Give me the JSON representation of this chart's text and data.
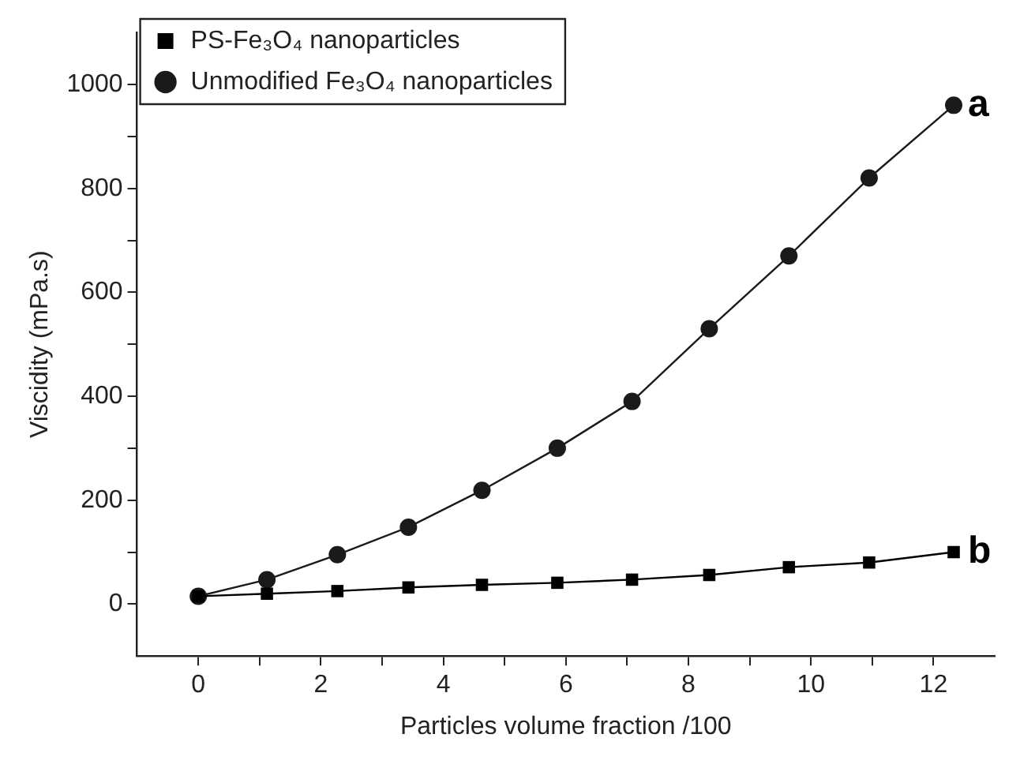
{
  "chart_data": {
    "type": "line",
    "xlabel": "Particles volume fraction /100",
    "ylabel": "Viscidity (mPa.s)",
    "x": [
      0,
      1.12,
      2.27,
      3.43,
      4.63,
      5.86,
      7.08,
      8.34,
      9.64,
      10.95,
      12.33
    ],
    "series": [
      {
        "name": "PS-Fe₃O₄ nanoparticles",
        "color": "#000000",
        "marker": "square",
        "values": [
          15,
          20,
          25,
          32,
          37,
          41,
          47,
          56,
          71,
          80,
          100
        ]
      },
      {
        "name": "Unmodified Fe₃O₄ nanoparticles",
        "color": "#1a1a1a",
        "marker": "circle",
        "values": [
          15,
          47,
          95,
          148,
          219,
          300,
          390,
          530,
          670,
          820,
          960
        ]
      }
    ],
    "xlim": [
      -1,
      13
    ],
    "xticks": [
      0,
      {
        "value": 1,
        "label": null
      },
      2,
      {
        "value": 3,
        "label": null
      },
      4,
      {
        "value": 5,
        "label": null
      },
      6,
      {
        "value": 7,
        "label": null
      },
      8,
      {
        "value": 9,
        "label": null
      },
      10,
      {
        "value": 11,
        "label": null
      },
      12
    ],
    "ylim": [
      -100,
      1100
    ],
    "yticks": [
      0,
      {
        "value": 100,
        "label": null
      },
      200,
      {
        "value": 300,
        "label": null
      },
      400,
      {
        "value": 500,
        "label": null
      },
      600,
      {
        "value": 700,
        "label": null
      },
      800,
      {
        "value": 900,
        "label": null
      },
      1000
    ],
    "annotations": [
      {
        "text": "a",
        "x": 12.33,
        "y": 960
      },
      {
        "text": "b",
        "x": 12.33,
        "y": 100
      }
    ],
    "legend": "top left",
    "grid": false,
    "line_style": "solid"
  }
}
